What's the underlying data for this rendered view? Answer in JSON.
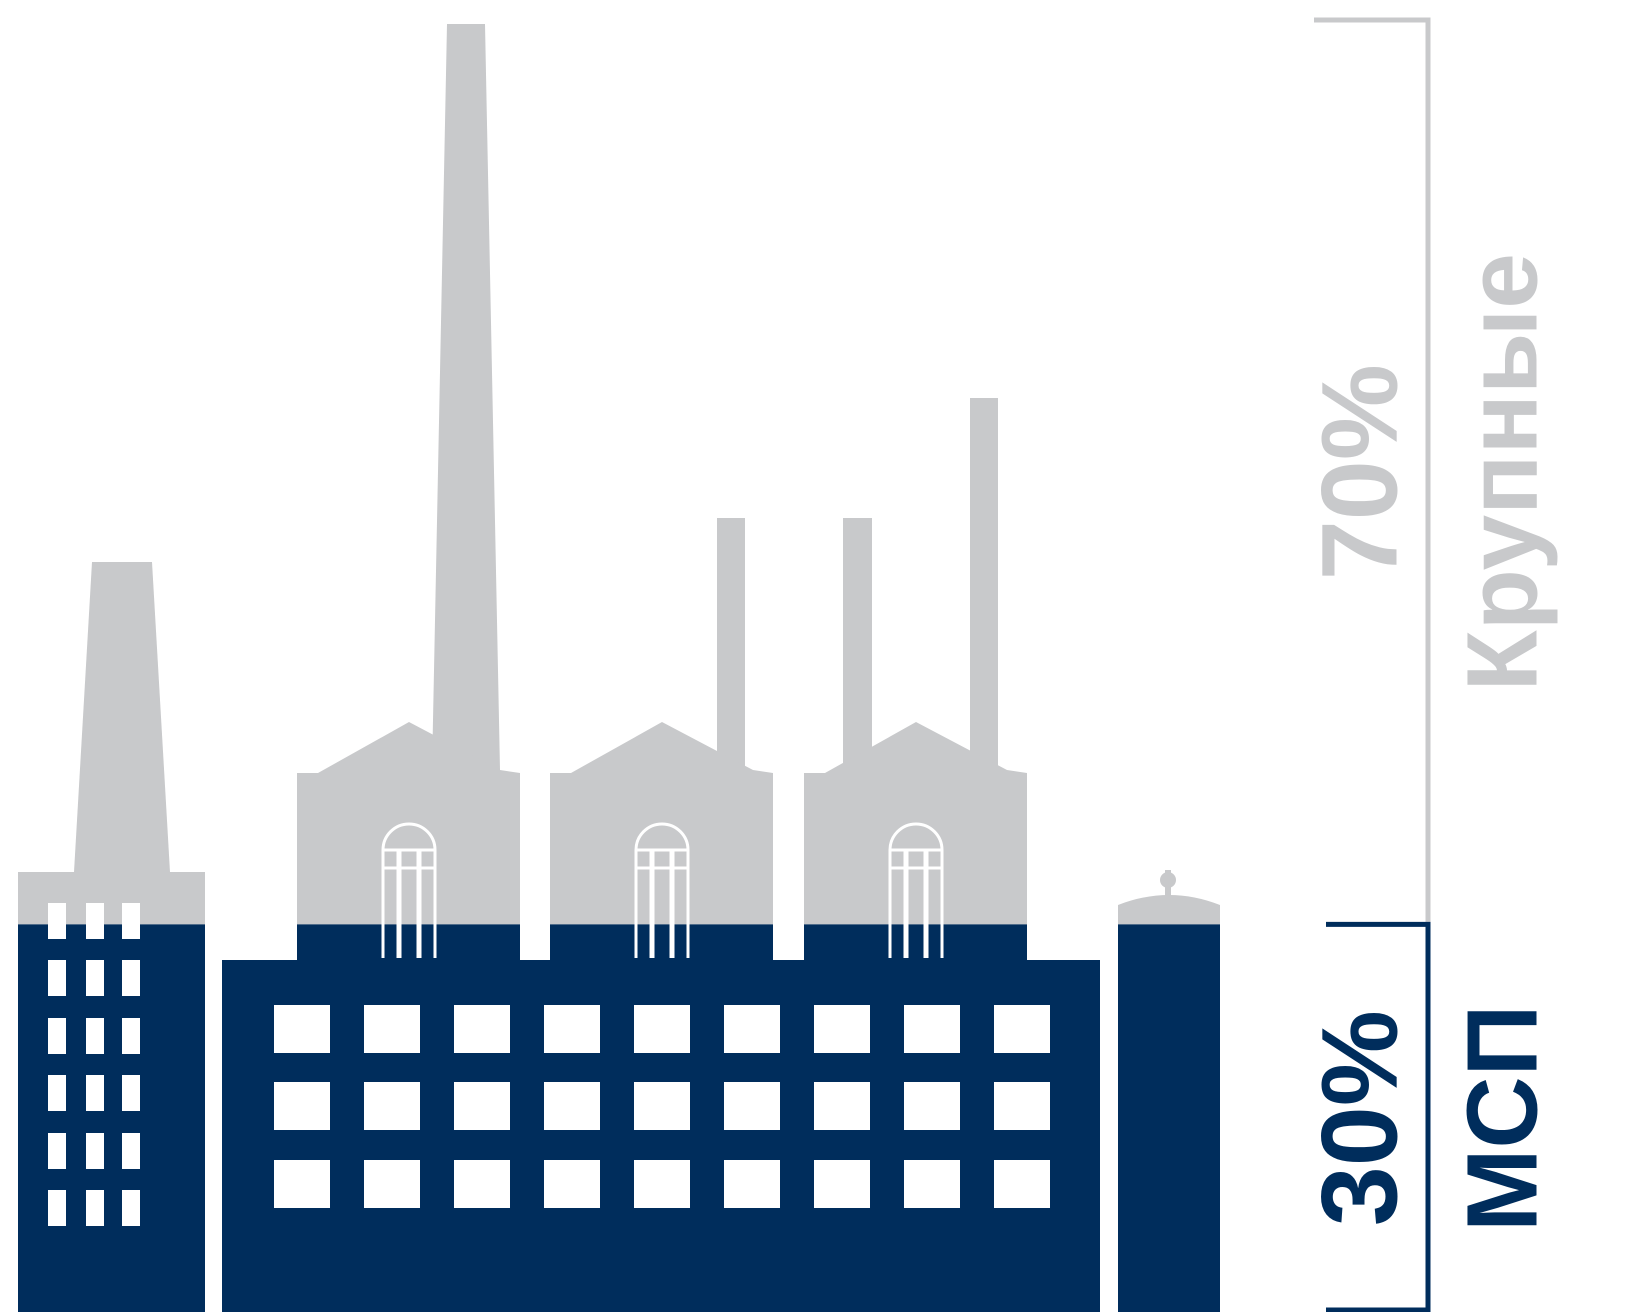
{
  "chart_data": {
    "type": "pictorial",
    "categories": [
      "МСП",
      "Крупные"
    ],
    "values": [
      30,
      70
    ],
    "value_labels": [
      "30%",
      "70%"
    ],
    "colors": [
      "#002d5c",
      "#c8c9cb"
    ]
  }
}
